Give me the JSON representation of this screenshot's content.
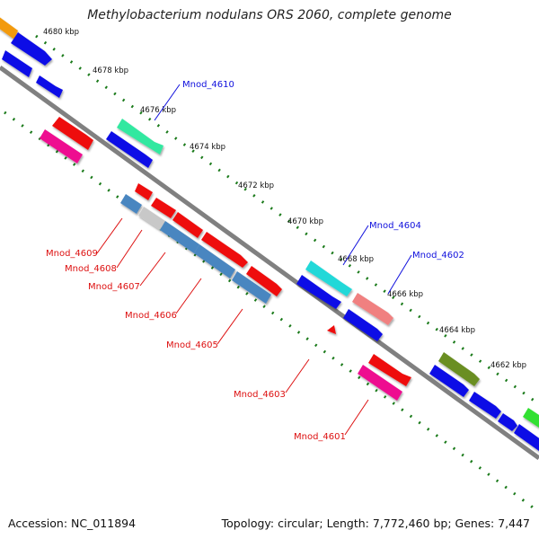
{
  "title": "Methylobacterium nodulans ORS 2060, complete genome",
  "footer": {
    "accession": "Accession: NC_011894",
    "summary": "Topology: circular; Length: 7,772,460 bp; Genes: 7,447"
  },
  "colors": {
    "backbone": "#808080",
    "tick": "#1a7a1a",
    "label_blue": "#1010dd",
    "label_red": "#dd1010"
  },
  "scale_labels": [
    "4680 kbp",
    "4678 kbp",
    "4676 kbp",
    "4674 kbp",
    "4672 kbp",
    "4670 kbp",
    "4668 kbp",
    "4666 kbp",
    "4664 kbp",
    "4662 kbp"
  ],
  "gene_labels": [
    {
      "name": "Mnod_4610",
      "color": "blue"
    },
    {
      "name": "Mnod_4604",
      "color": "blue"
    },
    {
      "name": "Mnod_4602",
      "color": "blue"
    },
    {
      "name": "Mnod_4609",
      "color": "red"
    },
    {
      "name": "Mnod_4608",
      "color": "red"
    },
    {
      "name": "Mnod_4607",
      "color": "red"
    },
    {
      "name": "Mnod_4606",
      "color": "red"
    },
    {
      "name": "Mnod_4605",
      "color": "red"
    },
    {
      "name": "Mnod_4603",
      "color": "red"
    },
    {
      "name": "Mnod_4601",
      "color": "red"
    }
  ]
}
